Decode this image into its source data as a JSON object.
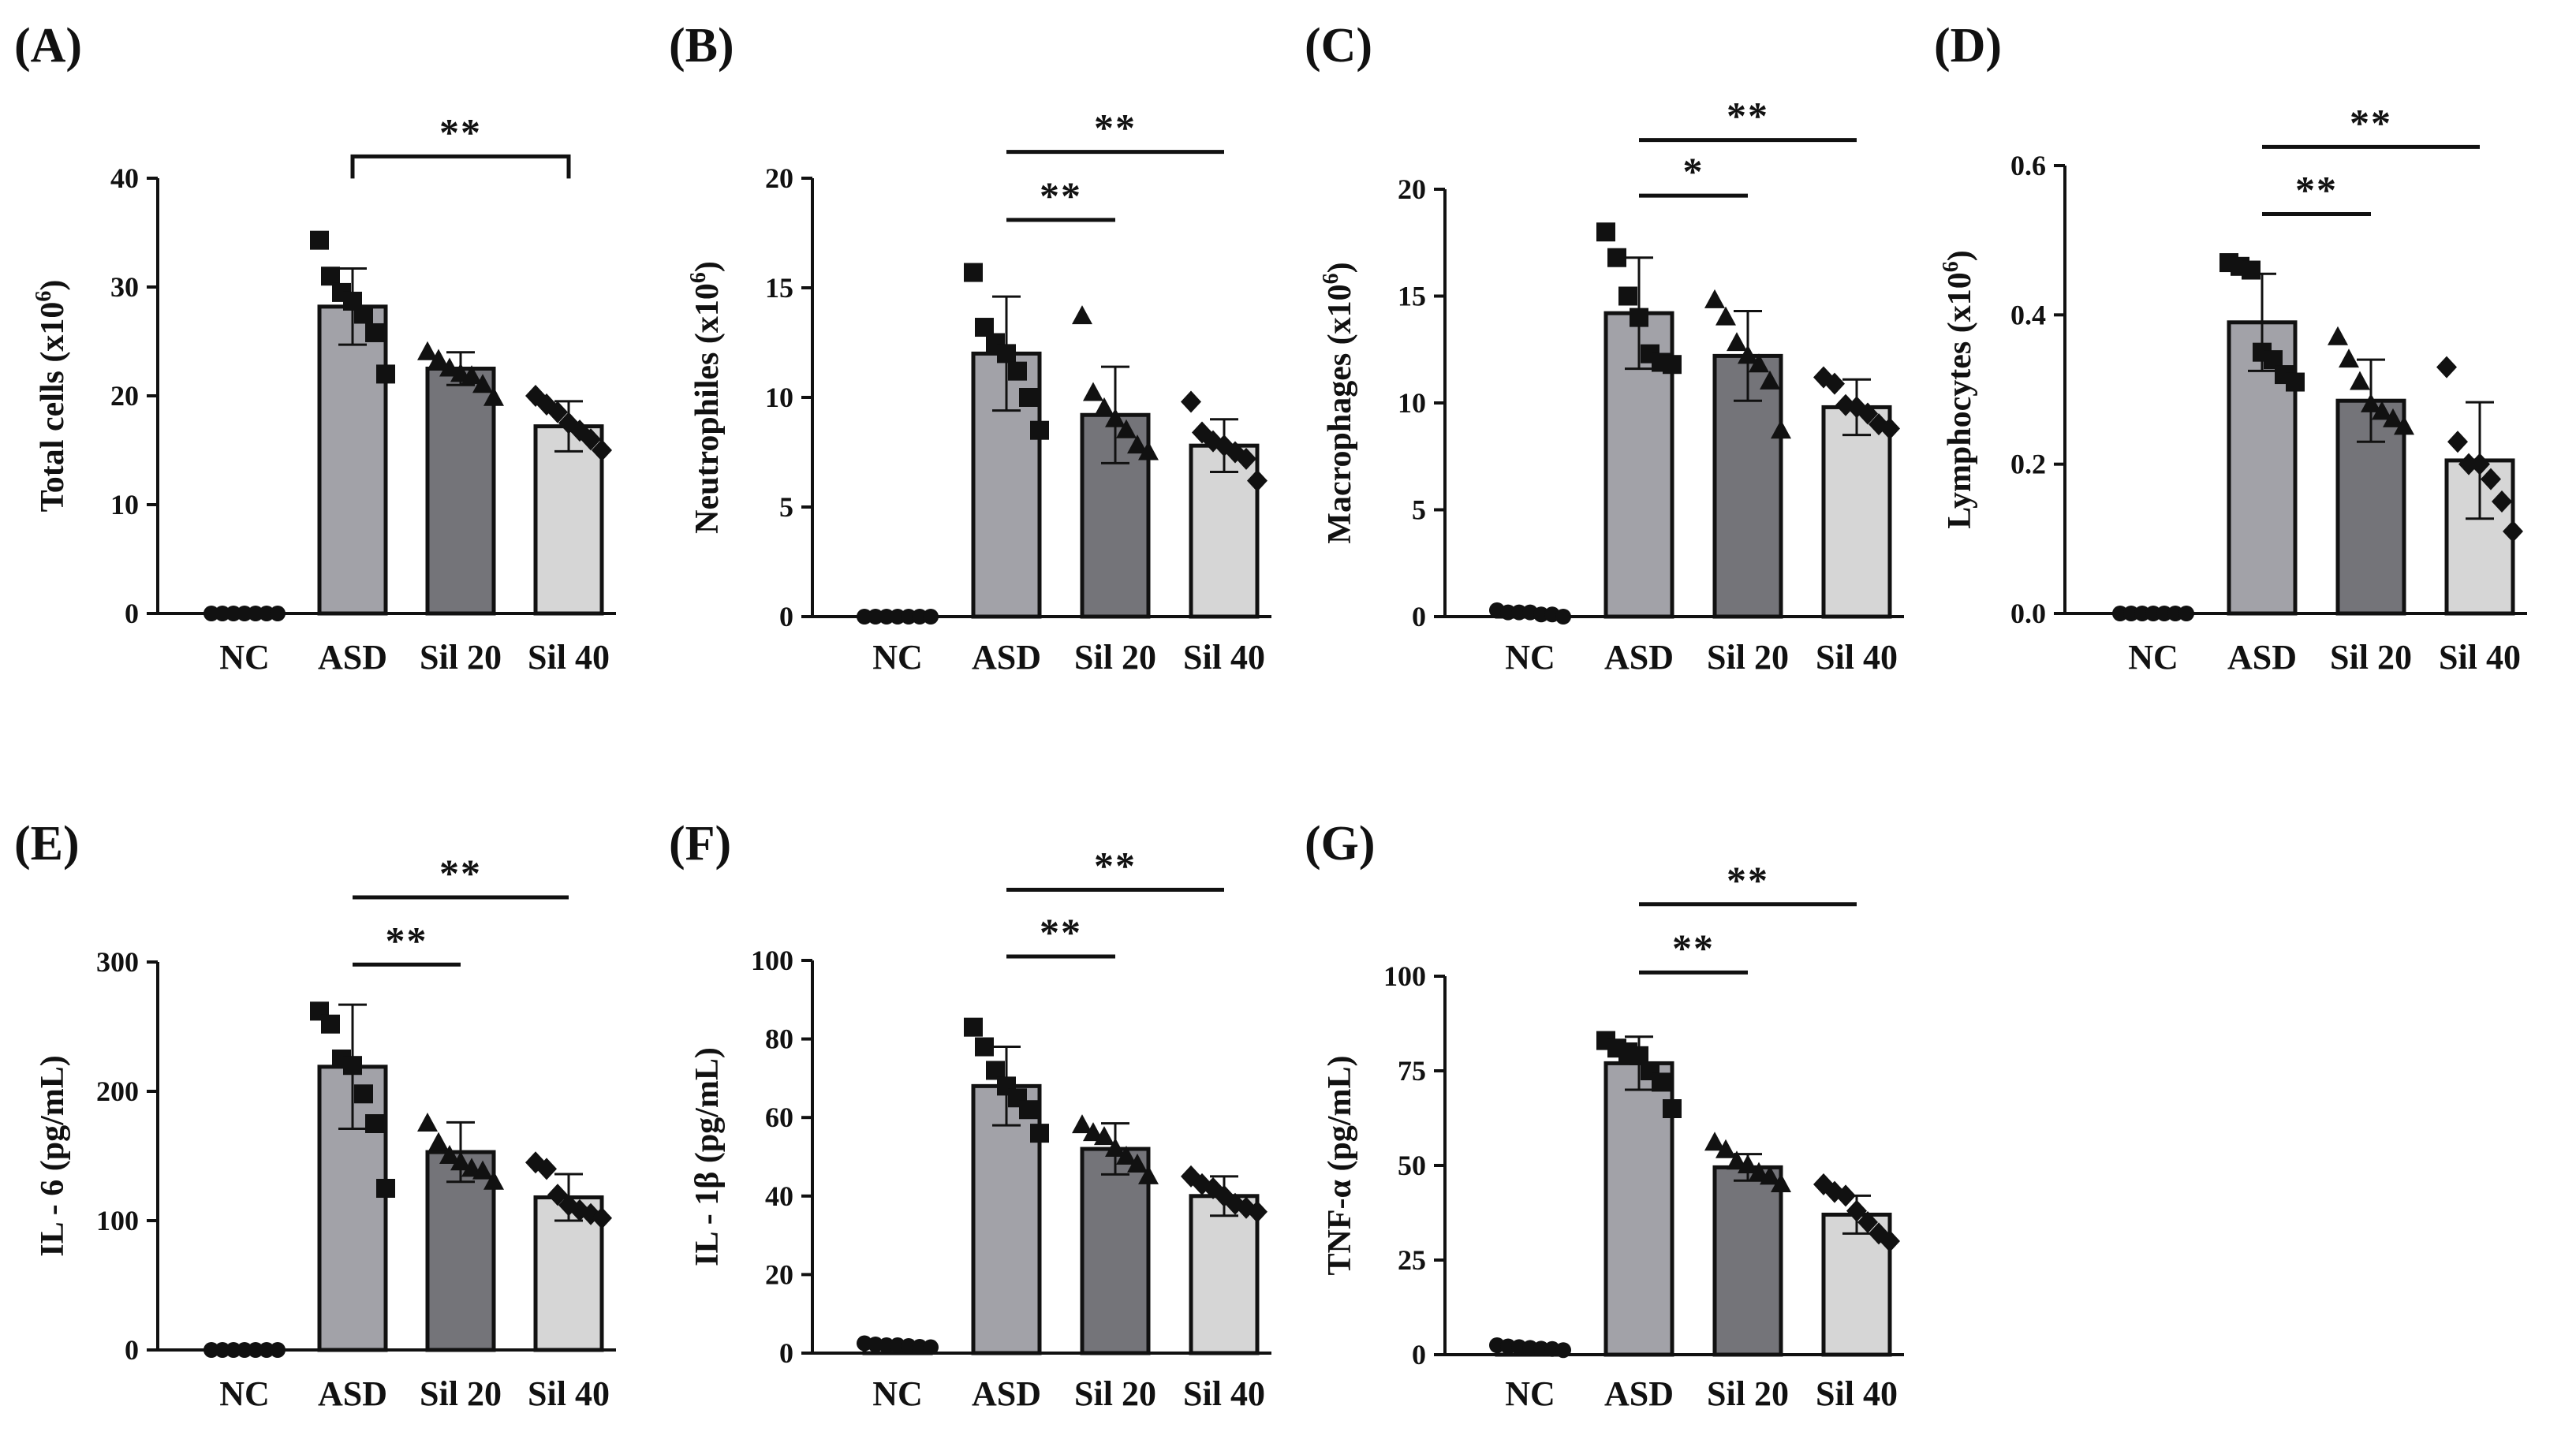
{
  "chart_data": [
    {
      "panel": "(A)",
      "type": "bar",
      "title": "",
      "ylabel": "Total cells  (x10",
      "ylabel_sup": "6",
      "ylabel_tail": ")",
      "categories": [
        "NC",
        "ASD",
        "Sil 20",
        "Sil 40"
      ],
      "values": [
        0,
        28.2,
        22.5,
        17.2
      ],
      "errors": [
        0,
        3.5,
        1.5,
        2.3
      ],
      "points": [
        [
          0,
          0,
          0,
          0,
          0,
          0,
          0
        ],
        [
          34.3,
          31,
          29.5,
          28.7,
          27.5,
          25.8,
          22
        ],
        [
          24,
          23.3,
          22.5,
          22,
          21.8,
          21,
          19.8
        ],
        [
          20,
          19.2,
          18.5,
          17.5,
          16.8,
          16,
          15
        ]
      ],
      "ylim": [
        0,
        40
      ],
      "yticks": [
        "0",
        "10",
        "20",
        "30",
        "40"
      ],
      "tickValues": [
        0,
        10,
        20,
        30,
        40
      ],
      "significance": [
        {
          "from": "ASD",
          "to": "Sil 40",
          "label": "**",
          "y": 42,
          "bracket": true
        }
      ]
    },
    {
      "panel": "(B)",
      "type": "bar",
      "title": "",
      "ylabel": "Neutrophiles  (x10",
      "ylabel_sup": "6",
      "ylabel_tail": ")",
      "categories": [
        "NC",
        "ASD",
        "Sil 20",
        "Sil 40"
      ],
      "values": [
        0,
        12,
        9.2,
        7.8
      ],
      "errors": [
        0,
        2.6,
        2.2,
        1.2
      ],
      "points": [
        [
          0,
          0,
          0,
          0,
          0,
          0,
          0
        ],
        [
          15.7,
          13.2,
          12.5,
          12,
          11.2,
          10,
          8.5
        ],
        [
          13.7,
          10.2,
          9.5,
          9,
          8.5,
          7.8,
          7.5
        ],
        [
          9.8,
          8.4,
          8,
          7.8,
          7.5,
          7.2,
          6.2
        ]
      ],
      "ylim": [
        0,
        20
      ],
      "yticks": [
        "0",
        "5",
        "10",
        "15",
        "20"
      ],
      "tickValues": [
        0,
        5,
        10,
        15,
        20
      ],
      "significance": [
        {
          "from": "ASD",
          "to": "Sil 20",
          "label": "**",
          "y": 18.1
        },
        {
          "from": "ASD",
          "to": "Sil 40",
          "label": "**",
          "y": 21.2
        }
      ]
    },
    {
      "panel": "(C)",
      "type": "bar",
      "title": "",
      "ylabel": "Macrophages  (x10",
      "ylabel_sup": "6",
      "ylabel_tail": ")",
      "categories": [
        "NC",
        "ASD",
        "Sil 20",
        "Sil 40"
      ],
      "values": [
        0.2,
        14.2,
        12.2,
        9.8
      ],
      "errors": [
        0,
        2.6,
        2.1,
        1.3
      ],
      "points": [
        [
          0.3,
          0.2,
          0.2,
          0.2,
          0.1,
          0.1,
          0
        ],
        [
          18,
          16.8,
          15,
          14,
          12.3,
          11.9,
          11.8
        ],
        [
          14.8,
          14,
          12.8,
          12.2,
          11.8,
          11,
          8.7
        ],
        [
          11.2,
          10.9,
          9.9,
          9.8,
          9.5,
          9,
          8.8
        ]
      ],
      "ylim": [
        0,
        20
      ],
      "yticks": [
        "0",
        "5",
        "10",
        "15",
        "20"
      ],
      "tickValues": [
        0,
        5,
        10,
        15,
        20
      ],
      "significance": [
        {
          "from": "ASD",
          "to": "Sil 20",
          "label": "*",
          "y": 19.7
        },
        {
          "from": "ASD",
          "to": "Sil 40",
          "label": "**",
          "y": 22.3
        }
      ]
    },
    {
      "panel": "(D)",
      "type": "bar",
      "title": "",
      "ylabel": "Lymphocytes  (x10",
      "ylabel_sup": "6",
      "ylabel_tail": ")",
      "categories": [
        "NC",
        "ASD",
        "Sil 20",
        "Sil 40"
      ],
      "values": [
        0,
        0.39,
        0.285,
        0.205
      ],
      "errors": [
        0,
        0.065,
        0.055,
        0.078
      ],
      "points": [
        [
          0,
          0,
          0,
          0,
          0,
          0,
          0
        ],
        [
          0.47,
          0.465,
          0.46,
          0.35,
          0.34,
          0.32,
          0.31
        ],
        [
          0.37,
          0.34,
          0.31,
          0.28,
          0.27,
          0.26,
          0.25
        ],
        [
          0.33,
          0.23,
          0.2,
          0.2,
          0.18,
          0.15,
          0.11
        ]
      ],
      "ylim": [
        0,
        0.6
      ],
      "yticks": [
        "0.0",
        "0.2",
        "0.4",
        "0.6"
      ],
      "tickValues": [
        0,
        0.2,
        0.4,
        0.6
      ],
      "significance": [
        {
          "from": "ASD",
          "to": "Sil 20",
          "label": "**",
          "y": 0.535
        },
        {
          "from": "ASD",
          "to": "Sil 40",
          "label": "**",
          "y": 0.625
        }
      ]
    },
    {
      "panel": "(E)",
      "type": "bar",
      "title": "",
      "ylabel": "IL - 6 (pg/mL)",
      "ylabel_sup": "",
      "ylabel_tail": "",
      "categories": [
        "NC",
        "ASD",
        "Sil 20",
        "Sil 40"
      ],
      "values": [
        0,
        219,
        153,
        118
      ],
      "errors": [
        0,
        48,
        23,
        18
      ],
      "points": [
        [
          0,
          0,
          0,
          0,
          0,
          0,
          0
        ],
        [
          262,
          252,
          225,
          220,
          198,
          175,
          125
        ],
        [
          175,
          160,
          150,
          145,
          140,
          138,
          130
        ],
        [
          145,
          140,
          120,
          112,
          108,
          105,
          102
        ]
      ],
      "ylim": [
        0,
        300
      ],
      "yticks": [
        "0",
        "100",
        "200",
        "300"
      ],
      "tickValues": [
        0,
        100,
        200,
        300
      ],
      "significance": [
        {
          "from": "ASD",
          "to": "Sil 20",
          "label": "**",
          "y": 298
        },
        {
          "from": "ASD",
          "to": "Sil 40",
          "label": "**",
          "y": 350
        }
      ]
    },
    {
      "panel": "(F)",
      "type": "bar",
      "title": "",
      "ylabel": "IL - 1β (pg/mL)",
      "ylabel_sup": "",
      "ylabel_tail": "",
      "categories": [
        "NC",
        "ASD",
        "Sil 20",
        "Sil 40"
      ],
      "values": [
        2,
        68,
        52,
        40
      ],
      "errors": [
        0,
        10,
        6.5,
        5
      ],
      "points": [
        [
          2.5,
          2.2,
          2,
          2,
          1.8,
          1.6,
          1.5
        ],
        [
          83,
          78,
          72,
          68,
          65,
          62,
          56
        ],
        [
          58,
          56,
          55,
          52,
          50,
          48,
          45
        ],
        [
          45,
          43,
          42,
          40,
          38,
          37,
          36
        ]
      ],
      "ylim": [
        0,
        100
      ],
      "yticks": [
        "0",
        "20",
        "40",
        "60",
        "80",
        "100"
      ],
      "tickValues": [
        0,
        20,
        40,
        60,
        80,
        100
      ],
      "significance": [
        {
          "from": "ASD",
          "to": "Sil 20",
          "label": "**",
          "y": 101
        },
        {
          "from": "ASD",
          "to": "Sil 40",
          "label": "**",
          "y": 118
        }
      ]
    },
    {
      "panel": "(G)",
      "type": "bar",
      "title": "",
      "ylabel": "TNF-α (pg/mL)",
      "ylabel_sup": "",
      "ylabel_tail": "",
      "categories": [
        "NC",
        "ASD",
        "Sil 20",
        "Sil 40"
      ],
      "values": [
        2,
        77,
        49.5,
        37
      ],
      "errors": [
        0,
        7,
        3.5,
        5
      ],
      "points": [
        [
          2.5,
          2.2,
          2,
          1.8,
          1.6,
          1.5,
          1.2
        ],
        [
          83,
          81,
          80,
          79,
          75,
          72,
          65
        ],
        [
          56,
          54,
          51,
          50,
          48,
          47,
          45
        ],
        [
          45,
          43,
          42,
          38,
          35,
          32,
          30
        ]
      ],
      "ylim": [
        0,
        100
      ],
      "yticks": [
        "0",
        "25",
        "50",
        "75",
        "100"
      ],
      "tickValues": [
        0,
        25,
        50,
        75,
        100
      ],
      "significance": [
        {
          "from": "ASD",
          "to": "Sil 20",
          "label": "**",
          "y": 101
        },
        {
          "from": "ASD",
          "to": "Sil 40",
          "label": "**",
          "y": 119
        }
      ]
    }
  ],
  "colors": {
    "NC": "#ffffff",
    "ASD": "#a2a2a8",
    "Sil 20": "#747479",
    "Sil 40": "#d6d6d6",
    "ink": "#111111"
  },
  "marker_shapes": [
    "circle",
    "square",
    "triangle",
    "diamond"
  ]
}
